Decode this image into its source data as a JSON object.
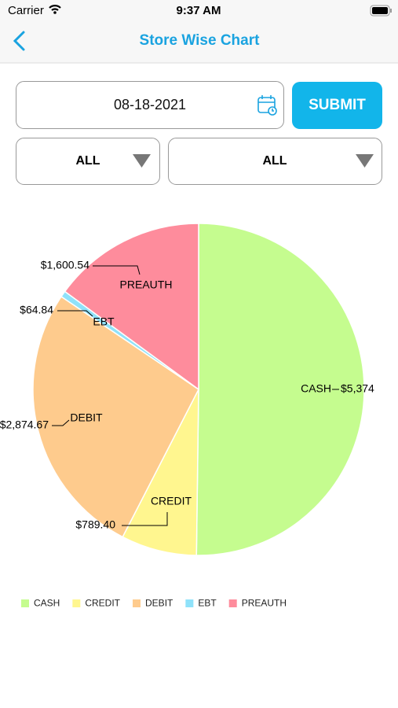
{
  "status_bar": {
    "carrier": "Carrier",
    "time": "9:37 AM"
  },
  "header": {
    "title": "Store Wise Chart"
  },
  "filters": {
    "date": "08-18-2021",
    "submit": "SUBMIT",
    "store": "ALL",
    "payment": "ALL"
  },
  "chart_data": {
    "type": "pie",
    "categories": [
      "CASH",
      "CREDIT",
      "DEBIT",
      "EBT",
      "PREAUTH"
    ],
    "values": [
      5374,
      789.4,
      2874.67,
      64.84,
      1600.54
    ],
    "value_labels": [
      "$5,374",
      "$789.40",
      "$2,874.67",
      "$64.84",
      "$1,600.54"
    ],
    "colors": [
      "#c5fc8f",
      "#fff68f",
      "#fecb8d",
      "#8fe2fa",
      "#fe8c9c"
    ],
    "legend": "bottom-left"
  }
}
